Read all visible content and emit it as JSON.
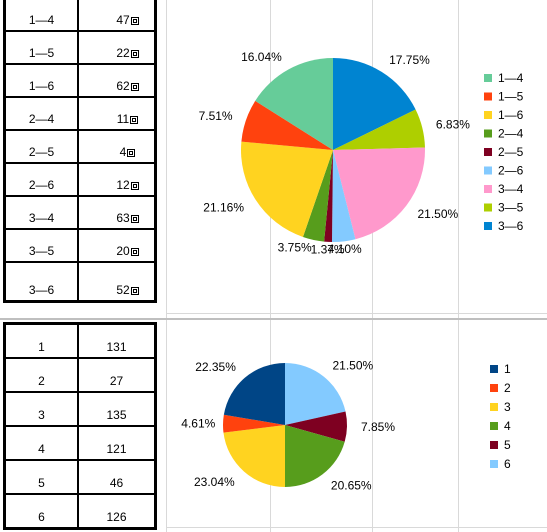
{
  "top_table": {
    "rows": [
      {
        "pair": "1—4",
        "count": "47"
      },
      {
        "pair": "1—5",
        "count": "22"
      },
      {
        "pair": "1—6",
        "count": "62"
      },
      {
        "pair": "2—4",
        "count": "11"
      },
      {
        "pair": "2—5",
        "count": "4"
      },
      {
        "pair": "2—6",
        "count": "12"
      },
      {
        "pair": "3—4",
        "count": "63"
      },
      {
        "pair": "3—5",
        "count": "20"
      },
      {
        "pair": "3—6",
        "count": "52"
      }
    ]
  },
  "bottom_table": {
    "rows": [
      {
        "key": "1",
        "count": "131"
      },
      {
        "key": "2",
        "count": "27"
      },
      {
        "key": "3",
        "count": "135"
      },
      {
        "key": "4",
        "count": "121"
      },
      {
        "key": "5",
        "count": "46"
      },
      {
        "key": "6",
        "count": "126"
      }
    ]
  },
  "chart_data": [
    {
      "type": "pie",
      "categories": [
        "1—4",
        "1—5",
        "1—6",
        "2—4",
        "2—5",
        "2—6",
        "3—4",
        "3—5",
        "3—6"
      ],
      "values": [
        16.04,
        7.51,
        21.16,
        3.75,
        1.37,
        4.1,
        21.5,
        6.83,
        17.75
      ],
      "labels": [
        "16.04%",
        "7.51%",
        "21.16%",
        "3.75%",
        "1.37%",
        "4.10%",
        "21.50%",
        "6.83%",
        "17.75%"
      ],
      "colors": [
        "#66cc99",
        "#ff420e",
        "#ffd320",
        "#579d1c",
        "#7e0021",
        "#83caff",
        "#ff99cc",
        "#aecf00",
        "#0084d1"
      ],
      "legend_position": "right"
    },
    {
      "type": "pie",
      "categories": [
        "1",
        "2",
        "3",
        "4",
        "5",
        "6"
      ],
      "values": [
        22.35,
        4.61,
        23.04,
        20.65,
        7.85,
        21.5
      ],
      "labels": [
        "22.35%",
        "4.61%",
        "23.04%",
        "20.65%",
        "7.85%",
        "21.50%"
      ],
      "colors": [
        "#004586",
        "#ff420e",
        "#ffd320",
        "#579d1c",
        "#7e0021",
        "#83caff"
      ],
      "legend_position": "right"
    }
  ]
}
